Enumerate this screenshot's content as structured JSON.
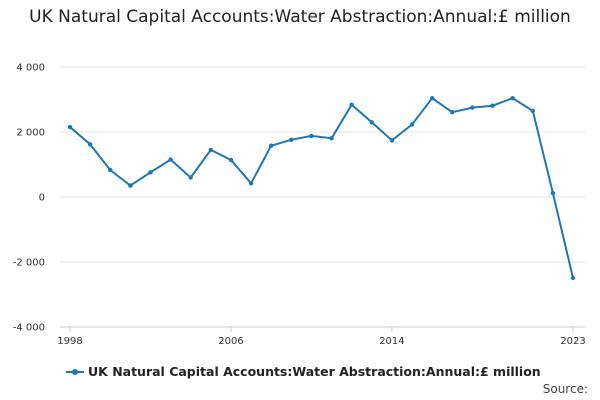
{
  "chart_data": {
    "type": "line",
    "title": "UK Natural Capital Accounts:Water Abstraction:Annual:£ million",
    "xlabel": "",
    "ylabel": "",
    "x": [
      1998,
      1999,
      2000,
      2001,
      2002,
      2003,
      2004,
      2005,
      2006,
      2007,
      2008,
      2009,
      2010,
      2011,
      2012,
      2013,
      2014,
      2015,
      2016,
      2017,
      2018,
      2019,
      2020,
      2021,
      2022,
      2023
    ],
    "series": [
      {
        "name": "UK Natural Capital Accounts:Water Abstraction:Annual:£ million",
        "color": "#1f77b4",
        "values": [
          2150,
          1620,
          830,
          350,
          760,
          1150,
          600,
          1450,
          1140,
          420,
          1580,
          1760,
          1880,
          1810,
          2840,
          2300,
          1740,
          2230,
          3040,
          2610,
          2750,
          2810,
          3040,
          2650,
          120,
          -2490
        ]
      }
    ],
    "xticks": [
      1998,
      2006,
      2014,
      2023
    ],
    "xtick_labels": [
      "1998",
      "2006",
      "2014",
      "2023"
    ],
    "yticks": [
      -4000,
      -2000,
      0,
      2000,
      4000
    ],
    "ytick_labels": [
      "-4 000",
      "-2 000",
      "0",
      "2 000",
      "4 000"
    ],
    "ylim": [
      -4000,
      4000
    ],
    "xlim": [
      1998,
      2023
    ],
    "grid": true,
    "legend_position": "bottom-left"
  },
  "source_label": "Source:"
}
